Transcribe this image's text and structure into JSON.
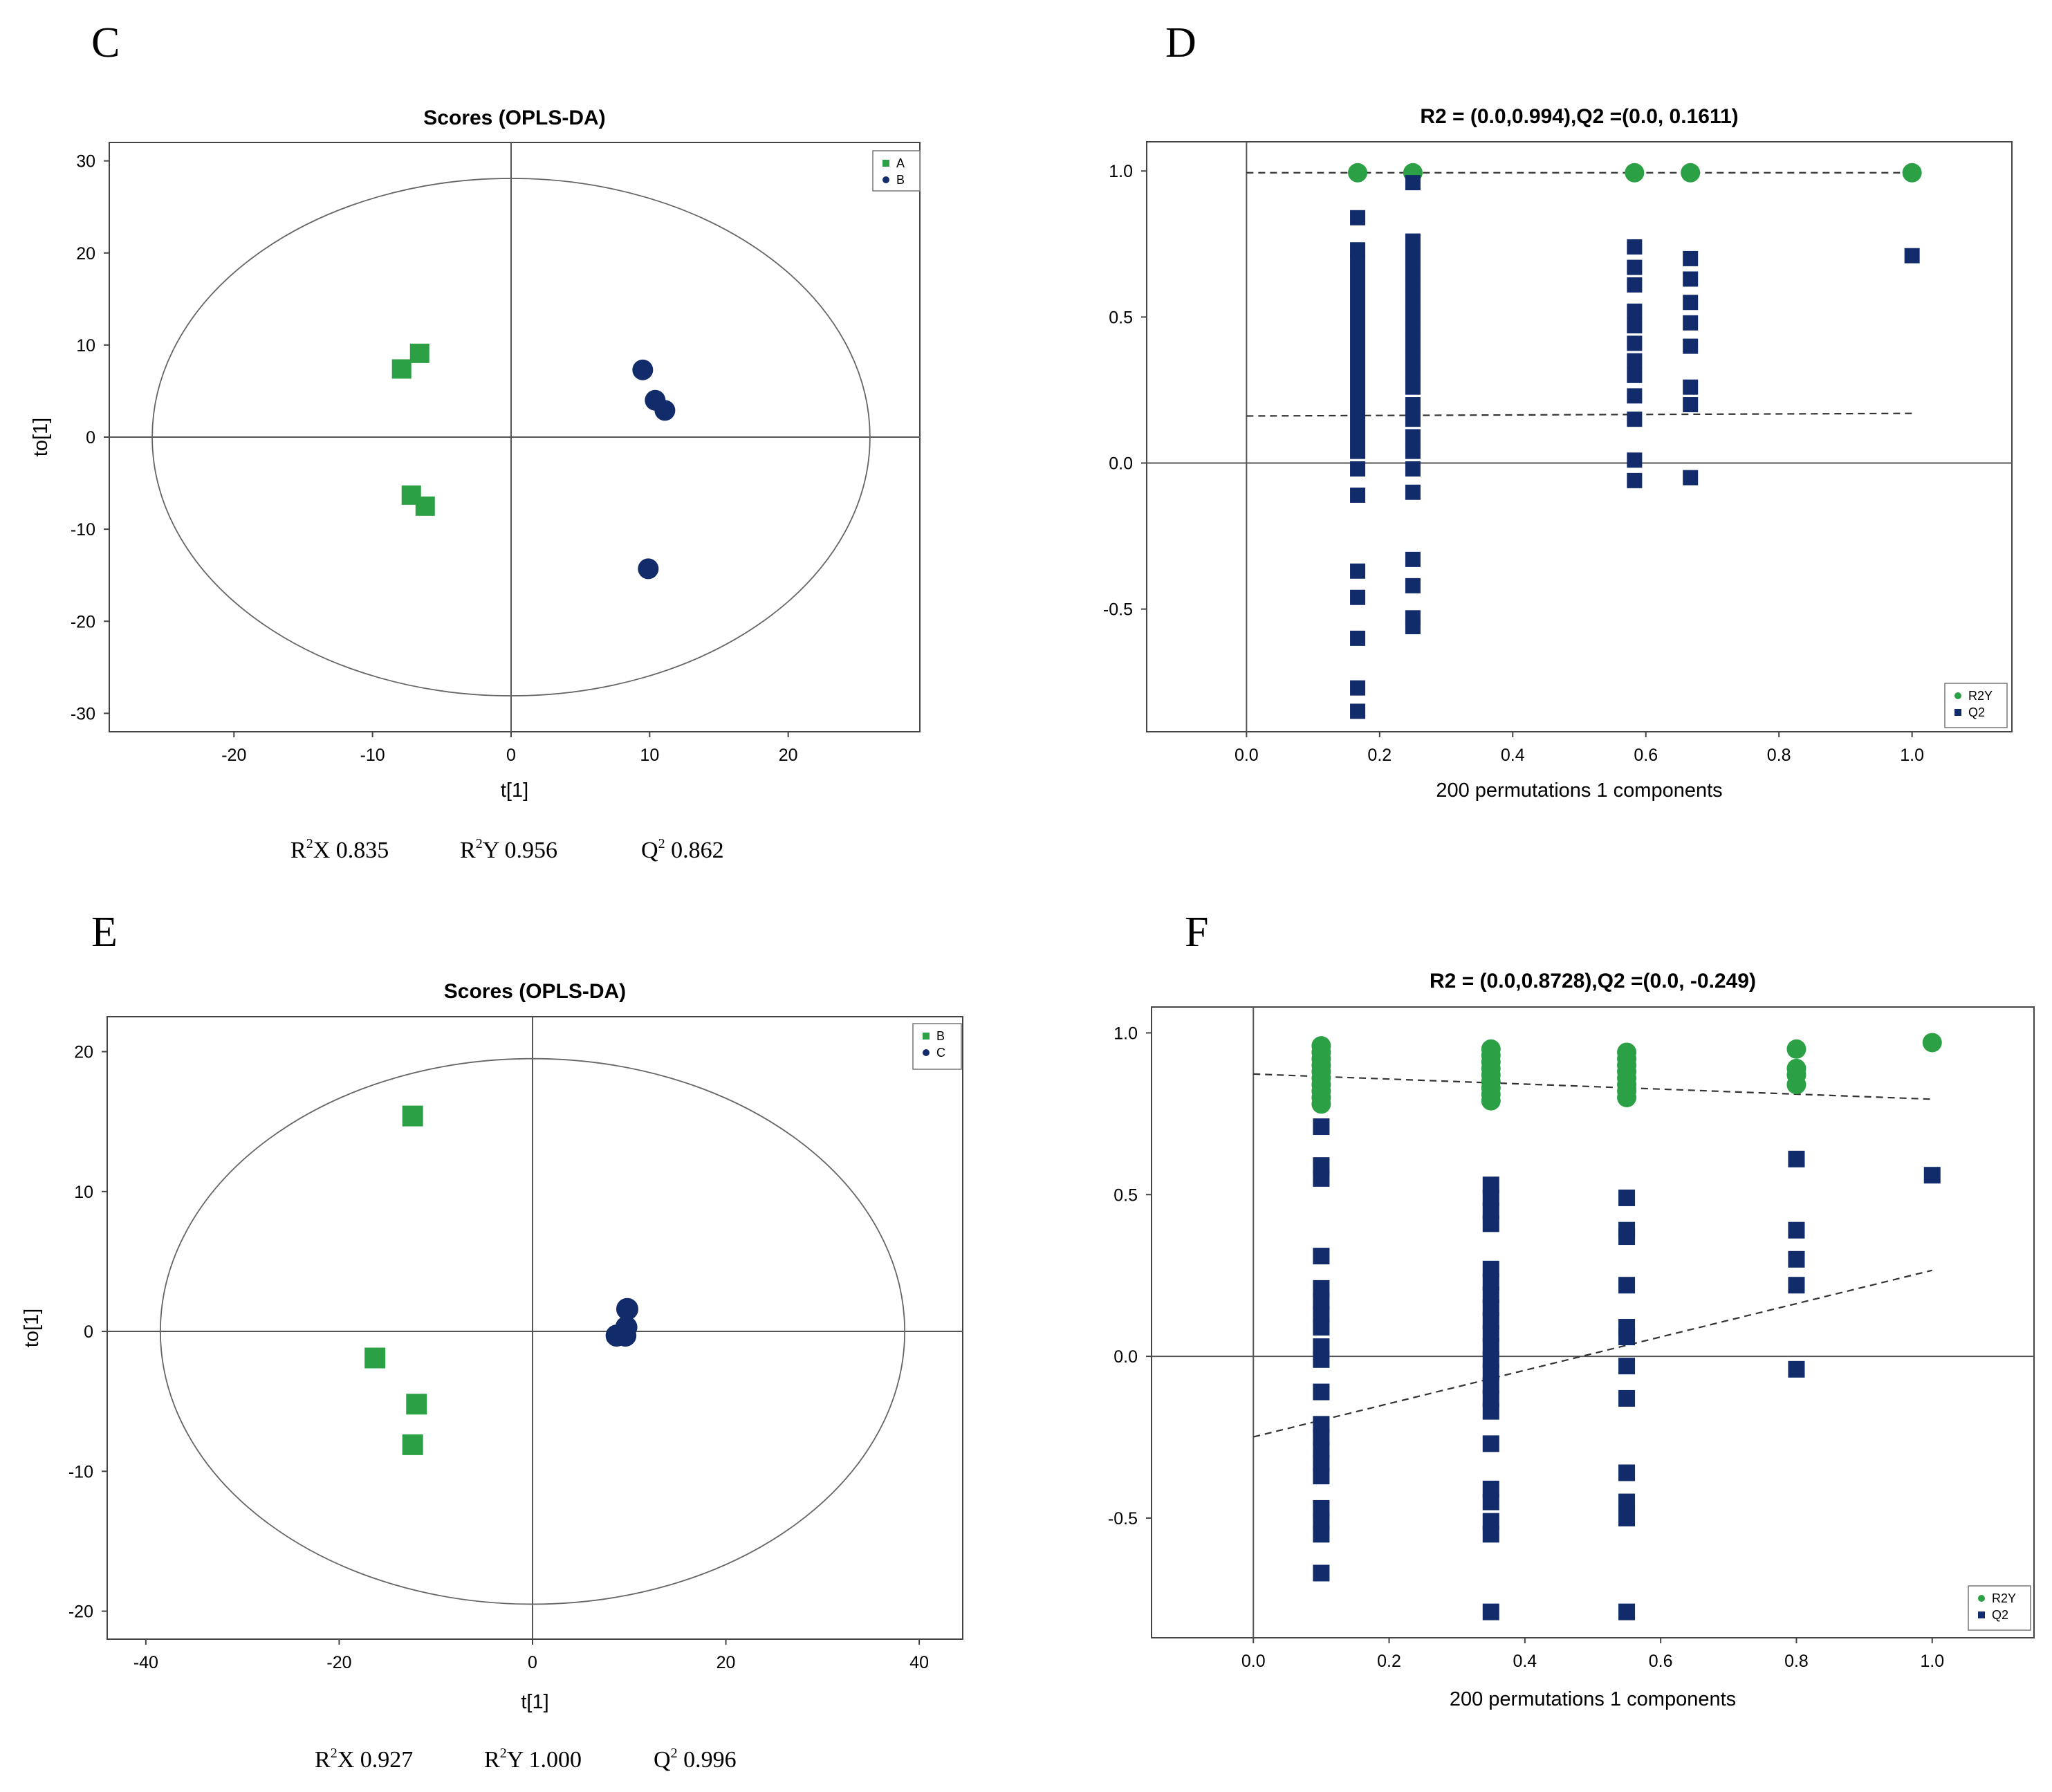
{
  "colors": {
    "green": "#2ca044",
    "navy": "#112b6b",
    "line": "#555555",
    "frame": "#444444"
  },
  "panels": [
    {
      "letter": "C",
      "stats": [
        {
          "pre": "R",
          "sup": "2",
          "post": "X 0.835"
        },
        {
          "pre": "R",
          "sup": "2",
          "post": "Y 0.956"
        },
        {
          "pre": "Q",
          "sup": "2",
          "post": " 0.862"
        }
      ]
    },
    {
      "letter": "D",
      "stats": []
    },
    {
      "letter": "E",
      "stats": [
        {
          "pre": "R",
          "sup": "2",
          "post": "X 0.927"
        },
        {
          "pre": "R",
          "sup": "2",
          "post": "Y 1.000"
        },
        {
          "pre": "Q",
          "sup": "2",
          "post": " 0.996"
        }
      ]
    },
    {
      "letter": "F",
      "stats": []
    }
  ],
  "chart_data": [
    {
      "type": "scatter",
      "title": "Scores (OPLS-DA)",
      "xlabel": "t[1]",
      "ylabel": "to[1]",
      "xlim": [
        -29,
        29.5
      ],
      "ylim": [
        -32,
        32
      ],
      "xticks": [
        -20,
        -10,
        0,
        10,
        20
      ],
      "yticks": [
        -30,
        -20,
        -10,
        0,
        10,
        20,
        30
      ],
      "xtick_labels": [
        "-20",
        "-10",
        "0",
        "10",
        "20"
      ],
      "ytick_labels": [
        "-30",
        "-20",
        "-10",
        "0",
        "10",
        "20",
        "30"
      ],
      "ellipse": {
        "rx": 25.9,
        "ry": 28.1
      },
      "legend_position": "top-right",
      "series": [
        {
          "name": "A",
          "marker": "square",
          "points": [
            [
              -6.6,
              9.1
            ],
            [
              -7.9,
              7.4
            ],
            [
              -7.2,
              -6.3
            ],
            [
              -6.2,
              -7.5
            ]
          ]
        },
        {
          "name": "B",
          "marker": "circle",
          "points": [
            [
              9.5,
              7.3
            ],
            [
              10.4,
              4.0
            ],
            [
              11.1,
              2.9
            ],
            [
              9.9,
              -14.3
            ]
          ]
        }
      ]
    },
    {
      "type": "scatter",
      "title": "R2 = (0.0,0.994),Q2 =(0.0, 0.1611)",
      "xlabel": "200 permutations 1 components",
      "ylabel": "",
      "xlim": [
        -0.15,
        1.15
      ],
      "ylim": [
        -0.92,
        1.1
      ],
      "xticks": [
        0,
        0.2,
        0.4,
        0.6,
        0.8,
        1
      ],
      "yticks": [
        -0.5,
        0,
        0.5,
        1
      ],
      "xtick_labels": [
        "0.0",
        "0.2",
        "0.4",
        "0.6",
        "0.8",
        "1.0"
      ],
      "ytick_labels": [
        "-0.5",
        "0.0",
        "0.5",
        "1.0"
      ],
      "legend_position": "bottom-right",
      "regression_lines": [
        {
          "series": "R2Y",
          "from": [
            0,
            0.994
          ],
          "to": [
            1,
            0.994
          ]
        },
        {
          "series": "Q2",
          "from": [
            0,
            0.1611
          ],
          "to": [
            1,
            0.17
          ]
        }
      ],
      "series": [
        {
          "name": "R2Y",
          "marker": "circle",
          "points": [
            [
              0.167,
              0.994
            ],
            [
              0.25,
              0.994
            ],
            [
              0.583,
              0.994
            ],
            [
              0.667,
              0.994
            ],
            [
              1.0,
              0.994
            ]
          ]
        },
        {
          "name": "Q2",
          "marker": "square",
          "points": [
            [
              0.167,
              0.84
            ],
            [
              0.167,
              0.73
            ],
            [
              0.167,
              0.69
            ],
            [
              0.167,
              0.64
            ],
            [
              0.167,
              0.59
            ],
            [
              0.167,
              0.54
            ],
            [
              0.167,
              0.49
            ],
            [
              0.167,
              0.44
            ],
            [
              0.167,
              0.39
            ],
            [
              0.167,
              0.34
            ],
            [
              0.167,
              0.29
            ],
            [
              0.167,
              0.24
            ],
            [
              0.167,
              0.19
            ],
            [
              0.167,
              0.14
            ],
            [
              0.167,
              0.09
            ],
            [
              0.167,
              0.04
            ],
            [
              0.167,
              -0.02
            ],
            [
              0.167,
              -0.11
            ],
            [
              0.167,
              -0.37
            ],
            [
              0.167,
              -0.46
            ],
            [
              0.167,
              -0.6
            ],
            [
              0.167,
              -0.77
            ],
            [
              0.167,
              -0.85
            ],
            [
              0.25,
              0.96
            ],
            [
              0.25,
              0.76
            ],
            [
              0.25,
              0.71
            ],
            [
              0.25,
              0.66
            ],
            [
              0.25,
              0.61
            ],
            [
              0.25,
              0.56
            ],
            [
              0.25,
              0.51
            ],
            [
              0.25,
              0.46
            ],
            [
              0.25,
              0.41
            ],
            [
              0.25,
              0.36
            ],
            [
              0.25,
              0.31
            ],
            [
              0.25,
              0.26
            ],
            [
              0.25,
              0.2
            ],
            [
              0.25,
              0.15
            ],
            [
              0.25,
              0.09
            ],
            [
              0.25,
              0.04
            ],
            [
              0.25,
              -0.02
            ],
            [
              0.25,
              -0.1
            ],
            [
              0.25,
              -0.33
            ],
            [
              0.25,
              -0.42
            ],
            [
              0.25,
              -0.53
            ],
            [
              0.25,
              -0.56
            ],
            [
              0.583,
              0.74
            ],
            [
              0.583,
              0.67
            ],
            [
              0.583,
              0.61
            ],
            [
              0.583,
              0.52
            ],
            [
              0.583,
              0.47
            ],
            [
              0.583,
              0.41
            ],
            [
              0.583,
              0.35
            ],
            [
              0.583,
              0.3
            ],
            [
              0.583,
              0.23
            ],
            [
              0.583,
              0.15
            ],
            [
              0.583,
              0.01
            ],
            [
              0.583,
              -0.06
            ],
            [
              0.667,
              0.7
            ],
            [
              0.667,
              0.63
            ],
            [
              0.667,
              0.55
            ],
            [
              0.667,
              0.48
            ],
            [
              0.667,
              0.4
            ],
            [
              0.667,
              0.26
            ],
            [
              0.667,
              0.2
            ],
            [
              0.667,
              -0.05
            ],
            [
              1.0,
              0.71
            ]
          ]
        }
      ]
    },
    {
      "type": "scatter",
      "title": "Scores (OPLS-DA)",
      "xlabel": "t[1]",
      "ylabel": "to[1]",
      "xlim": [
        -44,
        44.5
      ],
      "ylim": [
        -22,
        22.5
      ],
      "xticks": [
        -40,
        -20,
        0,
        20,
        40
      ],
      "yticks": [
        -20,
        -10,
        0,
        10,
        20
      ],
      "xtick_labels": [
        "-40",
        "-20",
        "0",
        "20",
        "40"
      ],
      "ytick_labels": [
        "-20",
        "-10",
        "0",
        "10",
        "20"
      ],
      "ellipse": {
        "rx": 38.5,
        "ry": 19.5
      },
      "legend_position": "top-right",
      "series": [
        {
          "name": "B",
          "marker": "square",
          "points": [
            [
              -12.4,
              15.4
            ],
            [
              -16.3,
              -1.9
            ],
            [
              -12.0,
              -5.2
            ],
            [
              -12.4,
              -8.1
            ]
          ]
        },
        {
          "name": "C",
          "marker": "circle",
          "points": [
            [
              9.8,
              1.6
            ],
            [
              9.7,
              0.3
            ],
            [
              8.7,
              -0.3
            ],
            [
              9.6,
              -0.3
            ]
          ]
        }
      ]
    },
    {
      "type": "scatter",
      "title": "R2 = (0.0,0.8728),Q2 =(0.0, -0.249)",
      "xlabel": "200 permutations 1 components",
      "ylabel": "",
      "xlim": [
        -0.15,
        1.15
      ],
      "ylim": [
        -0.87,
        1.08
      ],
      "xticks": [
        0,
        0.2,
        0.4,
        0.6,
        0.8,
        1
      ],
      "yticks": [
        -0.5,
        0,
        0.5,
        1
      ],
      "xtick_labels": [
        "0.0",
        "0.2",
        "0.4",
        "0.6",
        "0.8",
        "1.0"
      ],
      "ytick_labels": [
        "-0.5",
        "0.0",
        "0.5",
        "1.0"
      ],
      "legend_position": "bottom-right",
      "regression_lines": [
        {
          "series": "R2Y",
          "from": [
            0,
            0.8728
          ],
          "to": [
            1,
            0.795
          ]
        },
        {
          "series": "Q2",
          "from": [
            0,
            -0.249
          ],
          "to": [
            1,
            0.266
          ]
        }
      ],
      "series": [
        {
          "name": "R2Y",
          "marker": "circle",
          "points": [
            [
              0.1,
              0.96
            ],
            [
              0.1,
              0.94
            ],
            [
              0.1,
              0.92
            ],
            [
              0.1,
              0.9
            ],
            [
              0.1,
              0.88
            ],
            [
              0.1,
              0.86
            ],
            [
              0.1,
              0.84
            ],
            [
              0.1,
              0.82
            ],
            [
              0.1,
              0.8
            ],
            [
              0.1,
              0.78
            ],
            [
              0.35,
              0.95
            ],
            [
              0.35,
              0.93
            ],
            [
              0.35,
              0.91
            ],
            [
              0.35,
              0.89
            ],
            [
              0.35,
              0.87
            ],
            [
              0.35,
              0.85
            ],
            [
              0.35,
              0.83
            ],
            [
              0.35,
              0.81
            ],
            [
              0.35,
              0.79
            ],
            [
              0.55,
              0.94
            ],
            [
              0.55,
              0.92
            ],
            [
              0.55,
              0.9
            ],
            [
              0.55,
              0.88
            ],
            [
              0.55,
              0.86
            ],
            [
              0.55,
              0.84
            ],
            [
              0.55,
              0.82
            ],
            [
              0.55,
              0.8
            ],
            [
              0.8,
              0.95
            ],
            [
              0.8,
              0.89
            ],
            [
              0.8,
              0.87
            ],
            [
              0.8,
              0.84
            ],
            [
              1.0,
              0.97
            ]
          ]
        },
        {
          "name": "Q2",
          "marker": "square",
          "points": [
            [
              0.1,
              0.71
            ],
            [
              0.1,
              0.59
            ],
            [
              0.1,
              0.55
            ],
            [
              0.1,
              0.31
            ],
            [
              0.1,
              0.21
            ],
            [
              0.1,
              0.17
            ],
            [
              0.1,
              0.13
            ],
            [
              0.1,
              0.09
            ],
            [
              0.1,
              0.03
            ],
            [
              0.1,
              -0.01
            ],
            [
              0.1,
              -0.11
            ],
            [
              0.1,
              -0.21
            ],
            [
              0.1,
              -0.25
            ],
            [
              0.1,
              -0.29
            ],
            [
              0.1,
              -0.33
            ],
            [
              0.1,
              -0.37
            ],
            [
              0.1,
              -0.47
            ],
            [
              0.1,
              -0.51
            ],
            [
              0.1,
              -0.55
            ],
            [
              0.1,
              -0.67
            ],
            [
              0.35,
              0.53
            ],
            [
              0.35,
              0.49
            ],
            [
              0.35,
              0.45
            ],
            [
              0.35,
              0.41
            ],
            [
              0.35,
              0.27
            ],
            [
              0.35,
              0.23
            ],
            [
              0.35,
              0.19
            ],
            [
              0.35,
              0.15
            ],
            [
              0.35,
              0.11
            ],
            [
              0.35,
              0.07
            ],
            [
              0.35,
              0.03
            ],
            [
              0.35,
              -0.01
            ],
            [
              0.35,
              -0.05
            ],
            [
              0.35,
              -0.09
            ],
            [
              0.35,
              -0.13
            ],
            [
              0.35,
              -0.17
            ],
            [
              0.35,
              -0.27
            ],
            [
              0.35,
              -0.41
            ],
            [
              0.35,
              -0.45
            ],
            [
              0.35,
              -0.51
            ],
            [
              0.35,
              -0.55
            ],
            [
              0.35,
              -0.79
            ],
            [
              0.55,
              0.49
            ],
            [
              0.55,
              0.39
            ],
            [
              0.55,
              0.37
            ],
            [
              0.55,
              0.22
            ],
            [
              0.55,
              0.09
            ],
            [
              0.55,
              0.06
            ],
            [
              0.55,
              -0.03
            ],
            [
              0.55,
              -0.13
            ],
            [
              0.55,
              -0.36
            ],
            [
              0.55,
              -0.45
            ],
            [
              0.55,
              -0.5
            ],
            [
              0.55,
              -0.79
            ],
            [
              0.8,
              0.61
            ],
            [
              0.8,
              0.39
            ],
            [
              0.8,
              0.3
            ],
            [
              0.8,
              0.22
            ],
            [
              0.8,
              -0.04
            ],
            [
              1.0,
              0.56
            ]
          ]
        }
      ]
    }
  ]
}
